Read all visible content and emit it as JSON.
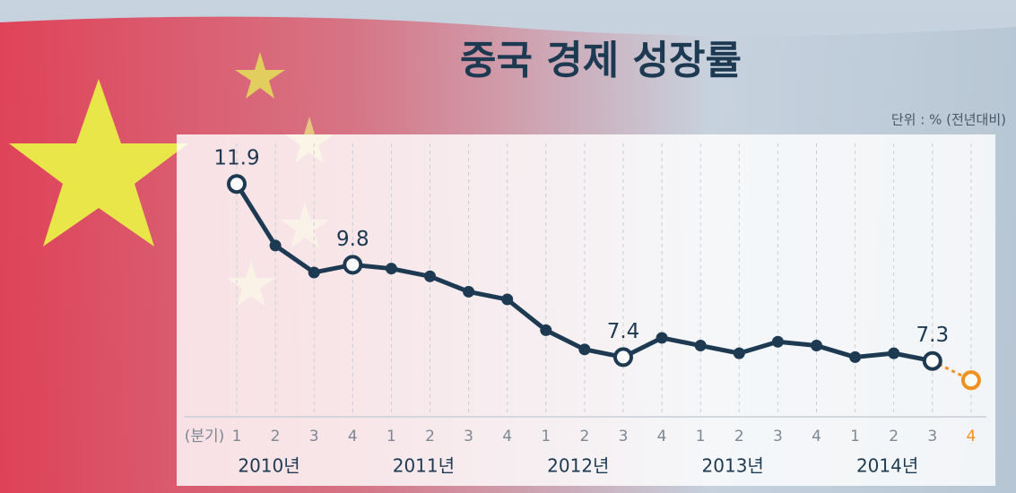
{
  "chart_data": {
    "type": "line",
    "title": "중국 경제 성장률",
    "unit_label": "단위 : % (전년대비)",
    "x_unit_label": "(분기)",
    "categories": [
      "1",
      "2",
      "3",
      "4",
      "1",
      "2",
      "3",
      "4",
      "1",
      "2",
      "3",
      "4",
      "1",
      "2",
      "3",
      "4",
      "1",
      "2",
      "3",
      "4"
    ],
    "year_labels": [
      "2010년",
      "2011년",
      "2012년",
      "2013년",
      "2014년"
    ],
    "series": [
      {
        "name": "성장률",
        "color": "#1d3a52",
        "values": [
          11.9,
          10.3,
          9.6,
          9.8,
          9.7,
          9.5,
          9.1,
          8.9,
          8.1,
          7.6,
          7.4,
          7.9,
          7.7,
          7.5,
          7.8,
          7.7,
          7.4,
          7.5,
          7.3,
          6.8
        ],
        "value_labels": [
          "11.9",
          null,
          null,
          "9.8",
          null,
          null,
          null,
          null,
          null,
          null,
          "7.4",
          null,
          null,
          null,
          null,
          null,
          null,
          null,
          "7.3",
          null
        ]
      }
    ],
    "forecast_color": "#f0901f",
    "ylim": [
      5.5,
      13
    ]
  }
}
